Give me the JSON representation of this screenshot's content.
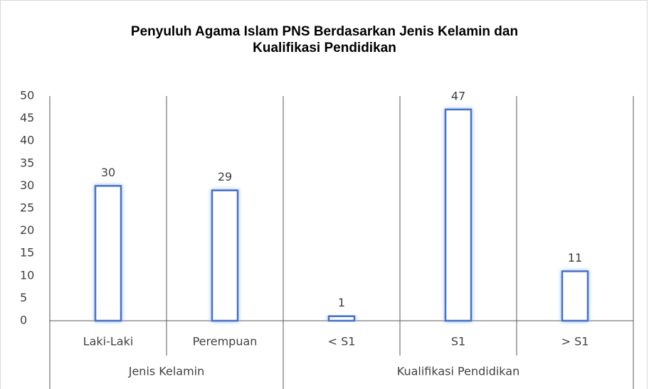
{
  "chart_data": {
    "type": "bar",
    "title": [
      "Penyuluh Agama Islam PNS Berdasarkan Jenis Kelamin dan",
      "Kualifikasi Pendidikan"
    ],
    "groups": [
      {
        "name": "Jenis Kelamin",
        "categories": [
          "Laki-Laki",
          "Perempuan"
        ]
      },
      {
        "name": "Kualifikasi Pendidikan",
        "categories": [
          "< S1",
          "S1",
          "> S1"
        ]
      }
    ],
    "values": [
      30,
      29,
      1,
      47,
      11
    ],
    "color": "#4472c4",
    "ylim": [
      0,
      50
    ],
    "yticks": [
      0,
      5,
      10,
      15,
      20,
      25,
      30,
      35,
      40,
      45,
      50
    ],
    "grid": true
  }
}
